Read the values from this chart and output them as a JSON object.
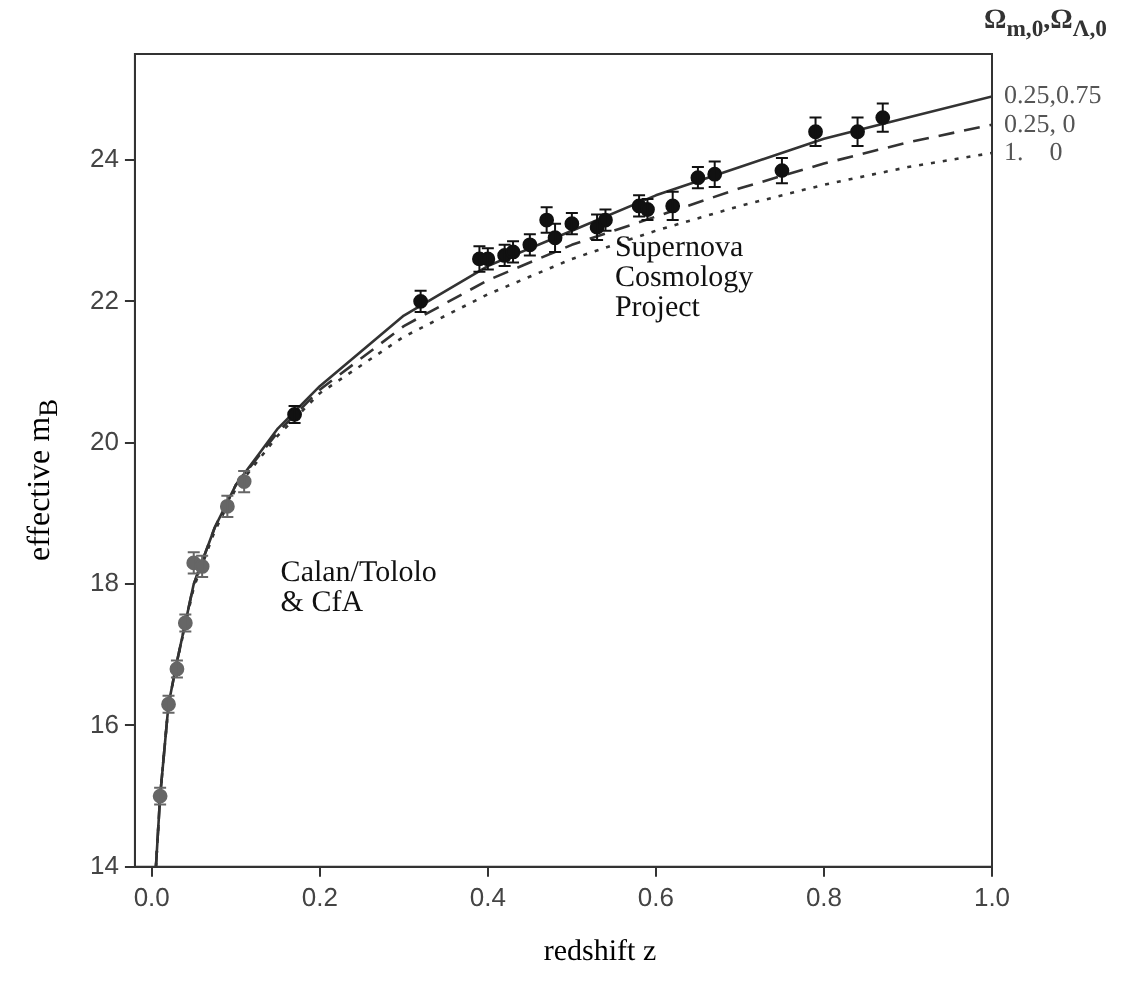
{
  "chart_data": {
    "type": "scatter",
    "xlabel": "redshift z",
    "ylabel": "effective m$_{B}$",
    "legend_title": "Ω$_{m,0}$,Ω$_{Λ,0}$",
    "annotations": [
      "Calan/Tololo\n& CfA",
      "Supernova\nCosmology\nProject"
    ],
    "xlim": [
      -0.02,
      1.0
    ],
    "ylim": [
      14,
      25.5
    ],
    "xticks": [
      {
        "value": 0,
        "label": "0.0"
      },
      0.2,
      0.4,
      0.6,
      0.8,
      {
        "value": 1,
        "label": "1.0"
      }
    ],
    "yticks": [
      14,
      16,
      18,
      20,
      22,
      24
    ],
    "series": [
      {
        "type": "line",
        "name": "0.25,0.75",
        "color": "#333333",
        "line_style": "solid",
        "marker": "none",
        "x": [
          0.005,
          0.01,
          0.02,
          0.03,
          0.05,
          0.075,
          0.1,
          0.15,
          0.2,
          0.3,
          0.4,
          0.5,
          0.6,
          0.7,
          0.8,
          0.9,
          1.0
        ],
        "values": [
          14,
          15,
          16.3,
          16.9,
          18.0,
          18.8,
          19.4,
          20.2,
          20.8,
          21.8,
          22.5,
          23.0,
          23.5,
          23.9,
          24.3,
          24.6,
          24.9
        ]
      },
      {
        "type": "line",
        "name": "0.25, 0",
        "color": "#333333",
        "line_style": "dashed",
        "marker": "none",
        "x": [
          0.005,
          0.01,
          0.02,
          0.03,
          0.05,
          0.075,
          0.1,
          0.15,
          0.2,
          0.3,
          0.4,
          0.5,
          0.6,
          0.7,
          0.8,
          0.9,
          1.0
        ],
        "values": [
          14,
          15,
          16.3,
          16.9,
          18.0,
          18.8,
          19.4,
          20.15,
          20.75,
          21.65,
          22.3,
          22.8,
          23.2,
          23.6,
          23.95,
          24.25,
          24.5
        ]
      },
      {
        "type": "line",
        "name": "1.    0",
        "color": "#333333",
        "line_style": "dotted",
        "marker": "none",
        "x": [
          0.005,
          0.01,
          0.02,
          0.03,
          0.05,
          0.075,
          0.1,
          0.15,
          0.2,
          0.3,
          0.4,
          0.5,
          0.6,
          0.7,
          0.8,
          0.9,
          1.0
        ],
        "values": [
          14,
          15,
          16.3,
          16.9,
          17.95,
          18.75,
          19.35,
          20.1,
          20.7,
          21.5,
          22.1,
          22.6,
          23.0,
          23.35,
          23.65,
          23.9,
          24.1
        ]
      },
      {
        "color": "#666666",
        "marker": "circle",
        "x": [
          0.01,
          0.02,
          0.03,
          0.04,
          0.05,
          0.06,
          0.09,
          0.11
        ],
        "values": [
          15.0,
          16.3,
          16.8,
          17.45,
          18.3,
          18.25,
          19.1,
          19.45
        ],
        "errors": [
          0.12,
          0.12,
          0.12,
          0.12,
          0.15,
          0.15,
          0.15,
          0.15
        ]
      },
      {
        "color": "#111111",
        "marker": "circle",
        "x": [
          0.17,
          0.32,
          0.39,
          0.4,
          0.42,
          0.43,
          0.45,
          0.47,
          0.48,
          0.5,
          0.53,
          0.54,
          0.58,
          0.59,
          0.62,
          0.65,
          0.67,
          0.75,
          0.79,
          0.84,
          0.87
        ],
        "values": [
          20.4,
          22.0,
          22.6,
          22.6,
          22.65,
          22.7,
          22.8,
          23.15,
          22.9,
          23.1,
          23.05,
          23.15,
          23.35,
          23.3,
          23.35,
          23.75,
          23.8,
          23.85,
          24.4,
          24.4,
          24.6
        ],
        "errors": [
          0.12,
          0.15,
          0.18,
          0.15,
          0.15,
          0.15,
          0.15,
          0.18,
          0.2,
          0.15,
          0.18,
          0.15,
          0.15,
          0.15,
          0.2,
          0.15,
          0.18,
          0.18,
          0.2,
          0.2,
          0.2
        ]
      }
    ]
  }
}
